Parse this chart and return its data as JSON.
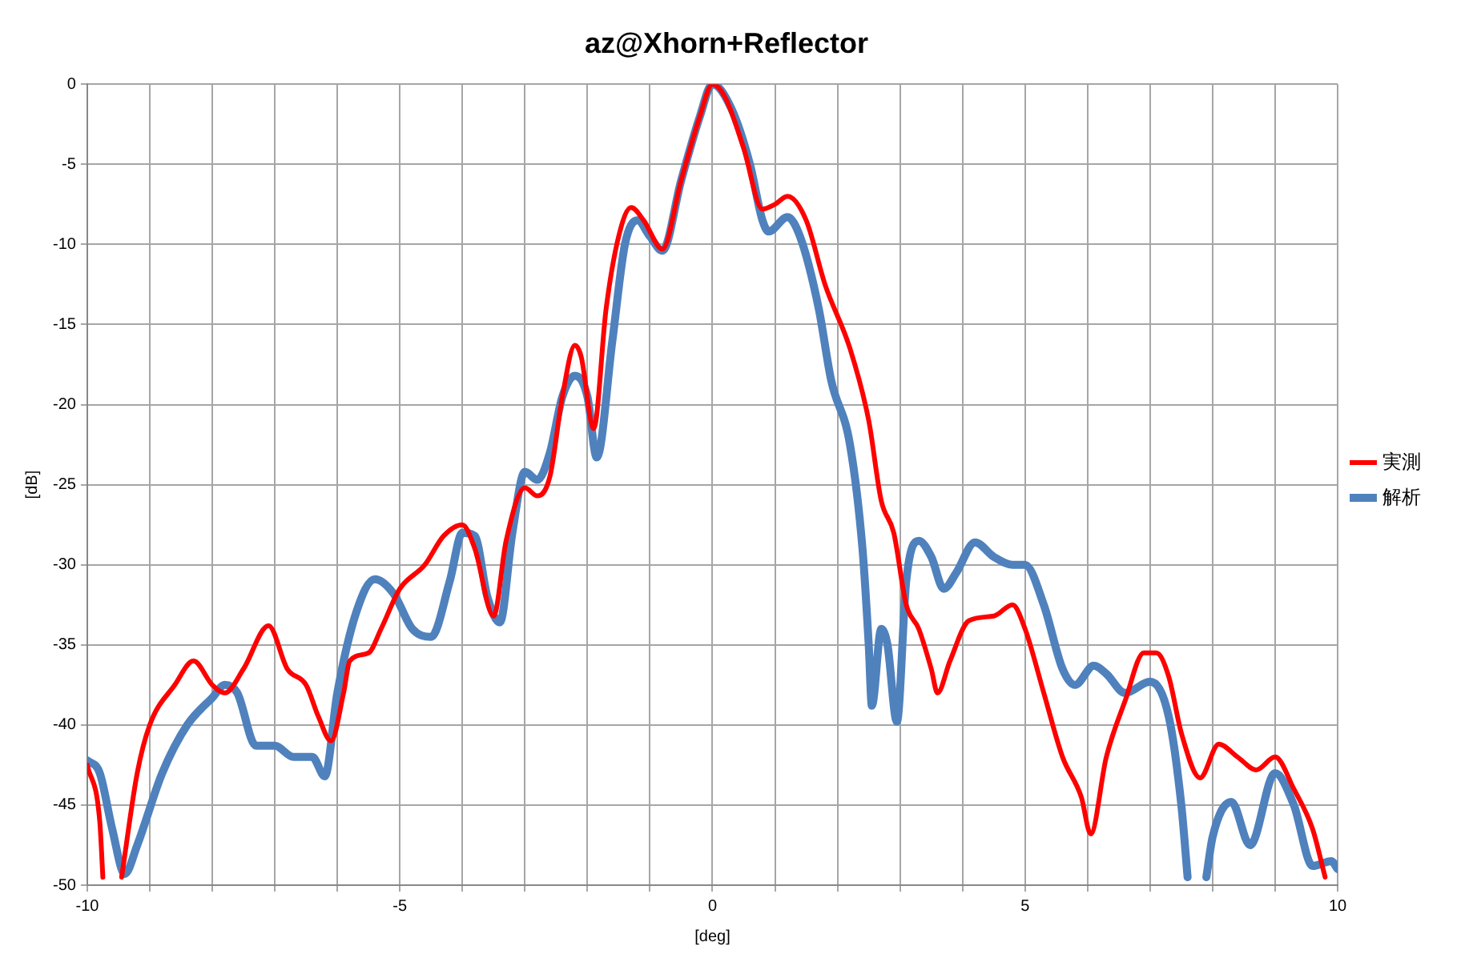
{
  "chart_data": {
    "type": "line",
    "title": "az@Xhorn+Reflector",
    "xlabel": "[deg]",
    "ylabel": "[dB]",
    "xlim": [
      -10,
      10
    ],
    "xticks": [
      -10,
      {
        "value": -9,
        "label": null
      },
      {
        "value": -8,
        "label": null
      },
      {
        "value": -7,
        "label": null
      },
      {
        "value": -6,
        "label": null
      },
      -5,
      {
        "value": -4,
        "label": null
      },
      {
        "value": -3,
        "label": null
      },
      {
        "value": -2,
        "label": null
      },
      {
        "value": -1,
        "label": null
      },
      0,
      {
        "value": 1,
        "label": null
      },
      {
        "value": 2,
        "label": null
      },
      {
        "value": 3,
        "label": null
      },
      {
        "value": 4,
        "label": null
      },
      5,
      {
        "value": 6,
        "label": null
      },
      {
        "value": 7,
        "label": null
      },
      {
        "value": 8,
        "label": null
      },
      {
        "value": 9,
        "label": null
      },
      10
    ],
    "ylim": [
      -50,
      0
    ],
    "yticks": [
      -50,
      -45,
      -40,
      -35,
      -30,
      -25,
      -20,
      -15,
      -10,
      -5,
      0
    ],
    "grid": true,
    "legend": "right",
    "marker": "none",
    "line_style": "solid",
    "series": [
      {
        "name": "実測",
        "color": "#ff0000",
        "x": [
          -10,
          -9.8,
          -9.75,
          -9.6,
          -9.45,
          -9.2,
          -9.0,
          -8.6,
          -8.3,
          -8.0,
          -7.8,
          -7.5,
          -7.1,
          -6.8,
          -6.5,
          -6.3,
          -6.1,
          -5.9,
          -5.8,
          -5.5,
          -5.3,
          -5.0,
          -4.6,
          -4.3,
          -4.0,
          -3.8,
          -3.5,
          -3.3,
          -3.0,
          -2.8,
          -2.6,
          -2.4,
          -2.2,
          -2.1,
          -1.9,
          -1.7,
          -1.5,
          -1.3,
          -1.1,
          -0.8,
          -0.5,
          -0.2,
          0,
          0.2,
          0.5,
          0.8,
          1.0,
          1.2,
          1.5,
          1.8,
          2.2,
          2.5,
          2.7,
          2.9,
          3.1,
          3.3,
          3.5,
          3.6,
          3.8,
          4.1,
          4.5,
          4.8,
          5.0,
          5.3,
          5.6,
          5.9,
          6.05,
          6.3,
          6.6,
          6.9,
          7.1,
          7.3,
          7.5,
          7.8,
          8.1,
          8.4,
          8.7,
          9.0,
          9.3,
          9.6,
          9.8
        ],
        "values": [
          -42.5,
          -46,
          -49.5,
          null,
          -49.5,
          -43,
          -40,
          -37.5,
          -36,
          -37.5,
          -38,
          -36.5,
          -33.8,
          -36.5,
          -37.5,
          -39.5,
          -41,
          -38,
          -36,
          -35.5,
          -34,
          -31.5,
          -30,
          -28.2,
          -27.5,
          -29,
          -33.2,
          -28.5,
          -25.2,
          -25.7,
          -24.5,
          -19.5,
          -16.3,
          -17,
          -21.5,
          -14,
          -9.5,
          -7.7,
          -8.5,
          -10.3,
          -6,
          -2,
          0,
          -0.8,
          -4,
          -7.8,
          -7.5,
          -7,
          -8.5,
          -12.5,
          -16.5,
          -21,
          -26,
          -28,
          -32.5,
          -34,
          -36.5,
          -38,
          -36,
          -33.5,
          -33.2,
          -32.5,
          -34,
          -38,
          -42,
          -44.5,
          -46.8,
          -42,
          -38.5,
          -35.5,
          -35.5,
          -37,
          -40.5,
          -43.3,
          -41.2,
          -42,
          -42.8,
          -42,
          -44,
          -46.5,
          -49.5
        ]
      },
      {
        "name": "解析",
        "color": "#4f81bd",
        "x": [
          -10,
          -9.8,
          -9.6,
          -9.4,
          -9.2,
          -8.8,
          -8.4,
          -8.0,
          -7.8,
          -7.6,
          -7.3,
          -7.0,
          -6.7,
          -6.4,
          -6.2,
          -6.0,
          -5.7,
          -5.4,
          -5.1,
          -4.8,
          -4.5,
          -4.2,
          -4.0,
          -3.8,
          -3.6,
          -3.4,
          -3.2,
          -3.0,
          -2.8,
          -2.6,
          -2.4,
          -2.2,
          -2.0,
          -1.85,
          -1.6,
          -1.4,
          -1.2,
          -1.0,
          -0.8,
          -0.5,
          -0.2,
          0,
          0.3,
          0.6,
          0.8,
          0.9,
          1.2,
          1.4,
          1.7,
          1.9,
          2.2,
          2.4,
          2.5,
          2.55,
          2.7,
          2.8,
          2.95,
          3.1,
          3.3,
          3.5,
          3.7,
          3.9,
          4.2,
          4.5,
          4.8,
          5.0,
          5.3,
          5.6,
          5.8,
          6.1,
          6.3,
          6.6,
          7.0,
          7.3,
          7.5,
          7.6,
          7.75,
          7.9,
          8.0,
          8.3,
          8.6,
          9.0,
          9.3,
          9.6,
          9.9,
          10
        ],
        "values": [
          -42.2,
          -43,
          -46.5,
          -49.3,
          -47.5,
          -43,
          -40,
          -38.3,
          -37.5,
          -38,
          -41.3,
          -41.3,
          -42,
          -42,
          -43.2,
          -38,
          -33,
          -30.9,
          -31.8,
          -34,
          -34.5,
          -31,
          -28,
          -28.2,
          -32,
          -33.6,
          -28,
          -24.2,
          -24.7,
          -23,
          -19.5,
          -18.2,
          -19.5,
          -23.3,
          -16,
          -10,
          -8.5,
          -9.5,
          -10.4,
          -6,
          -2,
          0,
          -1.5,
          -5,
          -8.5,
          -9.2,
          -8.3,
          -9.5,
          -14,
          -18.5,
          -22.5,
          -29,
          -35,
          -38.8,
          -34,
          -35,
          -39.8,
          -31,
          -28.5,
          -29.5,
          -31.5,
          -30.5,
          -28.6,
          -29.5,
          -30,
          -30,
          -32.5,
          -36.5,
          -37.5,
          -36.3,
          -36.8,
          -38,
          -37.3,
          -39.5,
          -45,
          -49.5,
          null,
          -49.5,
          -47,
          -44.8,
          -47.5,
          -43,
          -45,
          -48.8,
          -48.5,
          -49
        ]
      }
    ]
  }
}
